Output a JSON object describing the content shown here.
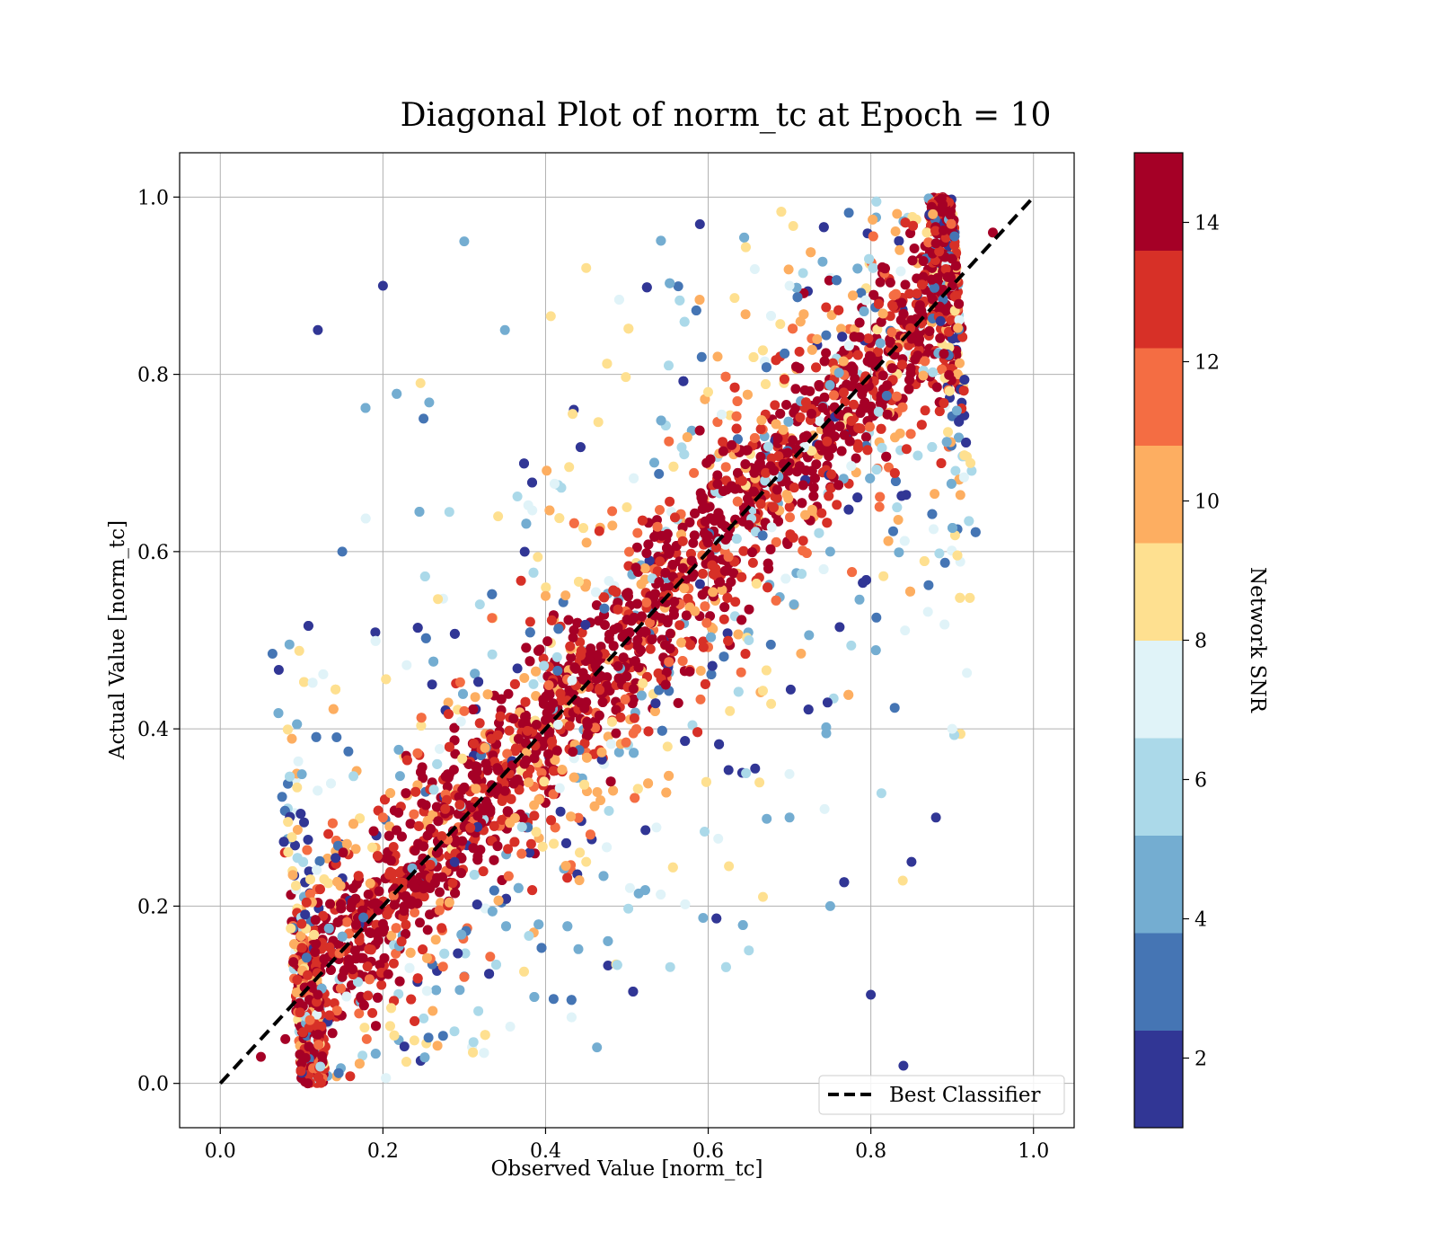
{
  "chart_data": {
    "type": "scatter",
    "title": "Diagonal Plot of norm_tc at Epoch = 10",
    "xlabel": "Observed Value [norm_tc]",
    "ylabel": "Actual Value [norm_tc]",
    "xlim": [
      -0.05,
      1.05
    ],
    "ylim": [
      -0.05,
      1.05
    ],
    "x_ticks": [
      0.0,
      0.2,
      0.4,
      0.6,
      0.8,
      1.0
    ],
    "y_ticks": [
      0.0,
      0.2,
      0.4,
      0.6,
      0.8,
      1.0
    ],
    "x_tick_labels": [
      "0.0",
      "0.2",
      "0.4",
      "0.6",
      "0.8",
      "1.0"
    ],
    "y_tick_labels": [
      "0.0",
      "0.2",
      "0.4",
      "0.6",
      "0.8",
      "1.0"
    ],
    "grid": true,
    "legend": {
      "placement": "lower-right",
      "entries": [
        "Best Classifier"
      ]
    },
    "reference_line": {
      "name": "Best Classifier",
      "style": "dashed",
      "color": "#000000",
      "x": [
        0,
        1
      ],
      "y": [
        0,
        1
      ]
    },
    "colorbar": {
      "label": "Network SNR",
      "range": [
        1,
        15
      ],
      "ticks": [
        2,
        4,
        6,
        8,
        10,
        12,
        14
      ],
      "tick_labels": [
        "2",
        "4",
        "6",
        "8",
        "10",
        "12",
        "14"
      ],
      "colors": [
        "#313695",
        "#4575b4",
        "#74add1",
        "#abd9e9",
        "#e0f3f8",
        "#fee090",
        "#fdae61",
        "#f46d43",
        "#d73027",
        "#a50026"
      ]
    },
    "series": [
      {
        "description_hint": "dense band near diagonal colored by SNR",
        "points": [
          [
            0.05,
            0.03,
            14
          ],
          [
            0.08,
            0.05,
            14
          ],
          [
            0.12,
            0.1,
            14
          ],
          [
            0.15,
            0.12,
            14
          ],
          [
            0.2,
            0.18,
            14
          ],
          [
            0.25,
            0.22,
            14
          ],
          [
            0.3,
            0.3,
            14
          ],
          [
            0.35,
            0.33,
            14
          ],
          [
            0.4,
            0.41,
            14
          ],
          [
            0.45,
            0.43,
            14
          ],
          [
            0.5,
            0.5,
            14
          ],
          [
            0.55,
            0.52,
            14
          ],
          [
            0.6,
            0.61,
            14
          ],
          [
            0.65,
            0.63,
            14
          ],
          [
            0.7,
            0.7,
            14
          ],
          [
            0.75,
            0.74,
            14
          ],
          [
            0.8,
            0.82,
            14
          ],
          [
            0.85,
            0.84,
            14
          ],
          [
            0.9,
            0.9,
            14
          ],
          [
            0.95,
            0.96,
            14
          ],
          [
            0.1,
            0.18,
            13
          ],
          [
            0.2,
            0.3,
            12
          ],
          [
            0.3,
            0.42,
            11
          ],
          [
            0.4,
            0.55,
            10
          ],
          [
            0.5,
            0.65,
            9
          ],
          [
            0.6,
            0.78,
            8
          ],
          [
            0.7,
            0.9,
            7
          ],
          [
            0.18,
            0.05,
            12
          ],
          [
            0.3,
            0.12,
            11
          ],
          [
            0.45,
            0.25,
            9
          ],
          [
            0.55,
            0.38,
            8
          ],
          [
            0.65,
            0.5,
            6
          ],
          [
            0.75,
            0.6,
            5
          ],
          [
            0.25,
            0.75,
            3
          ],
          [
            0.2,
            0.9,
            2
          ],
          [
            0.3,
            0.95,
            4
          ],
          [
            0.35,
            0.85,
            5
          ],
          [
            0.45,
            0.92,
            8
          ],
          [
            0.75,
            0.2,
            4
          ],
          [
            0.8,
            0.1,
            2
          ],
          [
            0.7,
            0.3,
            5
          ],
          [
            0.65,
            0.15,
            6
          ],
          [
            0.85,
            0.25,
            2
          ],
          [
            0.9,
            0.4,
            7
          ],
          [
            0.12,
            0.85,
            2
          ],
          [
            0.15,
            0.6,
            3
          ],
          [
            0.88,
            0.3,
            1
          ],
          [
            0.84,
            0.02,
            1
          ]
        ]
      }
    ]
  }
}
